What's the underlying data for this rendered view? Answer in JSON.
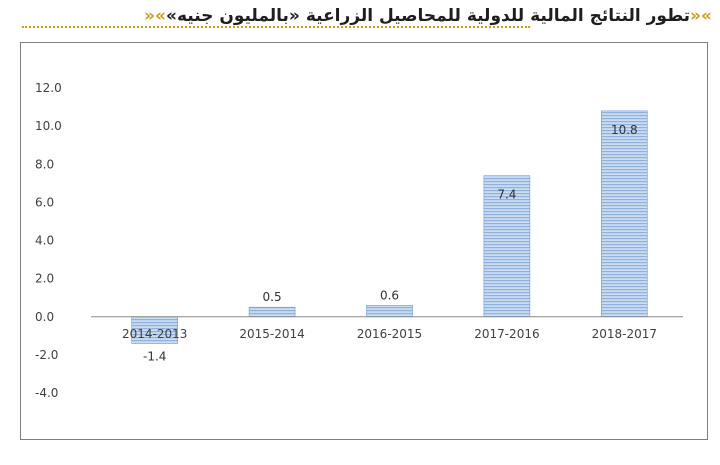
{
  "header": {
    "title": "تطور النتائج المالية للدولية للمحاصيل الزراعية «بالمليون جنيه»",
    "ornament": "»«"
  },
  "colors": {
    "bar_fill": "#bcd3ec",
    "bar_stripe": "#8fb1dc",
    "bar_edge": "#6f9bd2",
    "axis": "#8c8c8c",
    "ornament": "#c8a020"
  },
  "chart_data": {
    "type": "bar",
    "title": "",
    "xlabel": "",
    "ylabel": "",
    "categories": [
      "2014-2013",
      "2015-2014",
      "2016-2015",
      "2017-2016",
      "2018-2017"
    ],
    "values": [
      -1.4,
      0.5,
      0.6,
      7.4,
      10.8
    ],
    "data_labels": [
      "-1.4",
      "0.5",
      "0.6",
      "7.4",
      "10.8"
    ],
    "ylim": [
      -4.0,
      12.0
    ],
    "yticks": [
      "12.0",
      "10.0",
      "8.0",
      "6.0",
      "4.0",
      "2.0",
      "0.0",
      "-2.0",
      "-4.0"
    ],
    "ytick_values": [
      12,
      10,
      8,
      6,
      4,
      2,
      0,
      -2,
      -4
    ],
    "grid": false,
    "legend": "none"
  }
}
